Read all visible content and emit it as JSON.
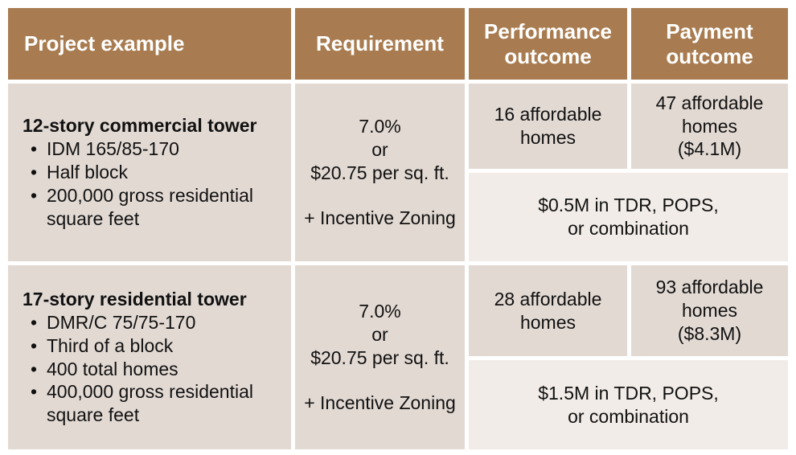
{
  "colors": {
    "header_bg": "#A87C50",
    "header_text": "#FFFFFF",
    "cell_bg": "#E2D9D3",
    "combined_cell_bg": "#F1ECE7",
    "body_text": "#111111",
    "page_bg": "#FFFFFF"
  },
  "table": {
    "headers": [
      "Project example",
      "Requirement",
      "Performance outcome",
      "Payment outcome"
    ],
    "rows": [
      {
        "project": {
          "title": "12-story commercial tower",
          "bullets": [
            "IDM 165/85-170",
            "Half block",
            "200,000 gross residential square feet"
          ]
        },
        "requirement": {
          "lines": [
            "7.0%",
            "or",
            "$20.75 per sq. ft."
          ],
          "addition": "+ Incentive Zoning"
        },
        "performance_outcome": "16 affordable homes",
        "payment_outcome": {
          "homes": "47 affordable homes",
          "amount": "($4.1M)"
        },
        "either_outcome": {
          "line1": "$0.5M in TDR, POPS,",
          "line2": "or combination"
        }
      },
      {
        "project": {
          "title": "17-story residential tower",
          "bullets": [
            "DMR/C 75/75-170",
            "Third of a block",
            "400 total homes",
            "400,000 gross residential square feet"
          ]
        },
        "requirement": {
          "lines": [
            "7.0%",
            "or",
            "$20.75 per sq. ft."
          ],
          "addition": "+ Incentive Zoning"
        },
        "performance_outcome": "28 affordable homes",
        "payment_outcome": {
          "homes": "93 affordable homes",
          "amount": "($8.3M)"
        },
        "either_outcome": {
          "line1": "$1.5M in TDR, POPS,",
          "line2": "or combination"
        }
      }
    ]
  }
}
